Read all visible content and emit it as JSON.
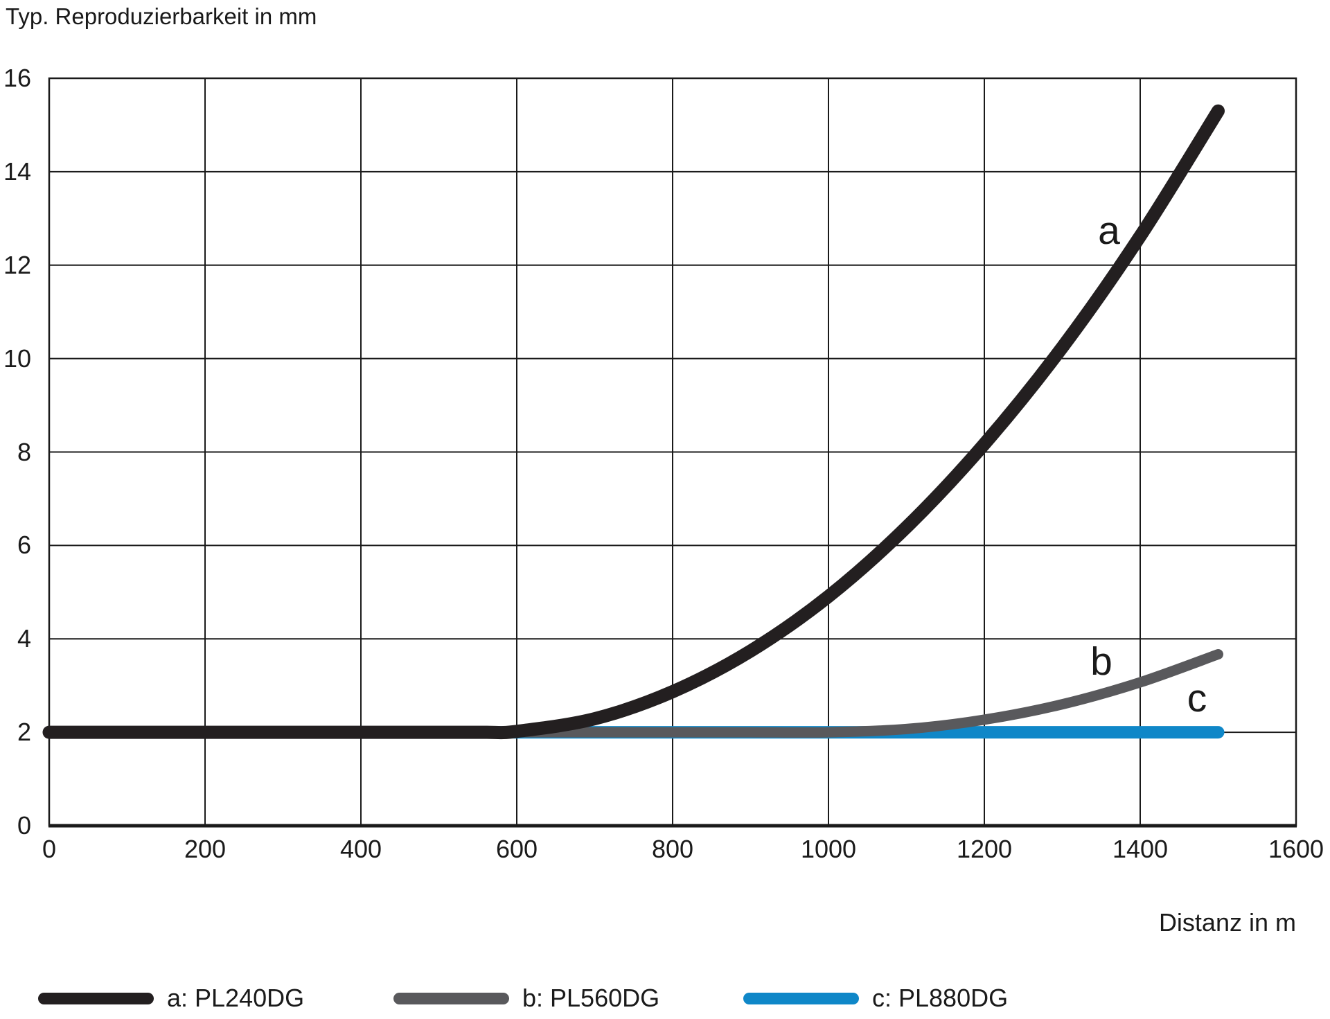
{
  "title": "Typ. Reproduzierbarkeit in mm",
  "colors": {
    "series_a": "#231f20",
    "series_b": "#59595c",
    "series_c": "#0f87c8",
    "grid": "#1a1a1a",
    "text": "#1a1a1a"
  },
  "chart_data": {
    "type": "line",
    "title": "Typ. Reproduzierbarkeit in mm",
    "xlabel": "Distanz in m",
    "ylabel": "Typ. Reproduzierbarkeit in mm",
    "xlim": [
      0,
      1600
    ],
    "ylim": [
      0,
      16
    ],
    "grid": true,
    "legend_position": "bottom",
    "xticks": [
      "0",
      "200",
      "400",
      "600",
      "800",
      "1000",
      "1200",
      "1400",
      "1600"
    ],
    "yticks": [
      "0",
      "2",
      "4",
      "6",
      "8",
      "10",
      "12",
      "14",
      "16"
    ],
    "series": [
      {
        "name": "a: PL240DG",
        "curve_label": "a",
        "color": "#231f20",
        "stroke_width": 19,
        "x": [
          0,
          100,
          200,
          300,
          400,
          500,
          560,
          600,
          700,
          800,
          900,
          1000,
          1100,
          1200,
          1300,
          1400,
          1500
        ],
        "y": [
          2,
          2,
          2,
          2,
          2,
          2,
          2,
          2.02,
          2.29,
          2.87,
          3.74,
          4.91,
          6.39,
          8.17,
          10.24,
          12.62,
          15.3
        ]
      },
      {
        "name": "b: PL560DG",
        "curve_label": "b",
        "color": "#59595c",
        "stroke_width": 15,
        "x": [
          0,
          100,
          200,
          300,
          400,
          500,
          600,
          700,
          800,
          900,
          1000,
          1100,
          1200,
          1300,
          1400,
          1500
        ],
        "y": [
          2,
          2,
          2,
          2,
          2,
          2,
          2,
          2,
          2,
          2,
          2,
          2.07,
          2.27,
          2.6,
          3.07,
          3.67
        ]
      },
      {
        "name": "c: PL880DG",
        "curve_label": "c",
        "color": "#0f87c8",
        "stroke_width": 18,
        "x": [
          0,
          1500
        ],
        "y": [
          2,
          2
        ]
      }
    ],
    "curve_labels": [
      {
        "text": "a",
        "x": 1360,
        "y": 12.75
      },
      {
        "text": "b",
        "x": 1350,
        "y": 3.5
      },
      {
        "text": "c",
        "x": 1473,
        "y": 2.72
      }
    ]
  },
  "legend": {
    "items": [
      {
        "label": "a: PL240DG",
        "color": "#231f20"
      },
      {
        "label": "b: PL560DG",
        "color": "#59595c"
      },
      {
        "label": "c: PL880DG",
        "color": "#0f87c8"
      }
    ]
  }
}
